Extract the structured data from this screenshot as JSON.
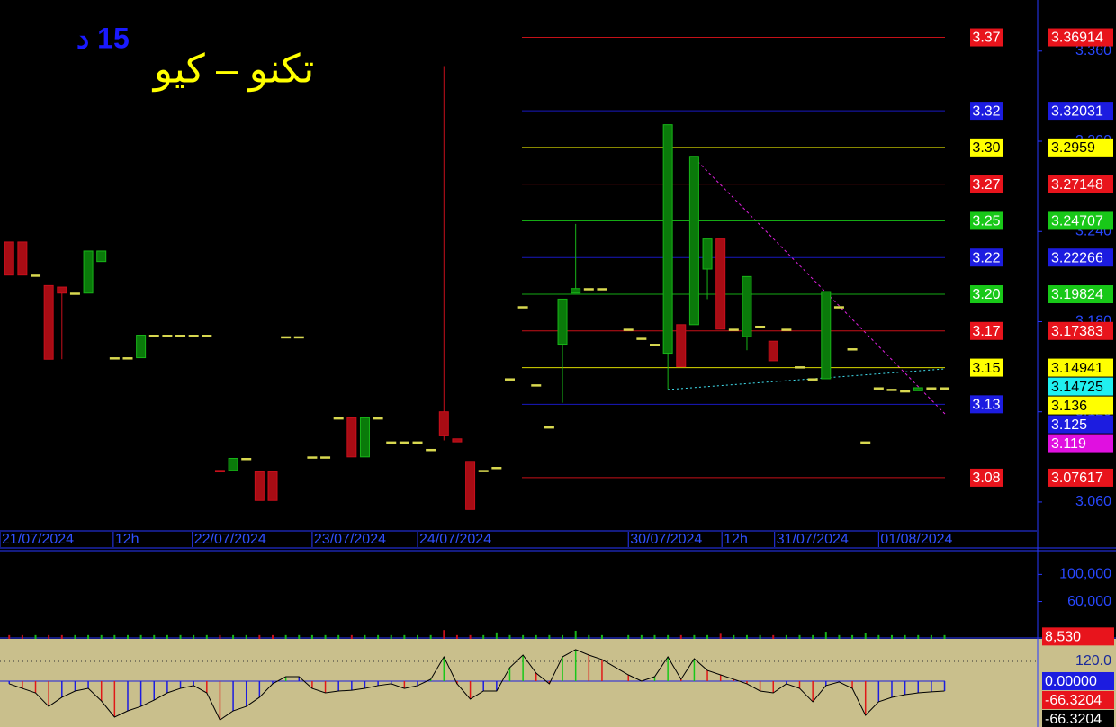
{
  "chart_data": [
    {
      "type": "candlestick",
      "title": "تكنو – كيو",
      "subtitle": "15 د",
      "x": [
        0,
        1,
        2,
        3,
        4,
        5,
        6,
        7,
        8,
        9,
        10,
        11,
        12,
        13,
        14,
        15,
        16,
        17,
        18,
        19,
        20,
        21,
        22,
        23,
        24,
        25,
        26,
        27,
        28,
        29,
        30,
        31,
        32,
        33,
        34,
        35,
        36,
        37,
        38,
        39,
        40,
        41,
        42,
        43,
        44,
        45,
        47,
        48,
        49,
        50,
        51,
        52,
        53,
        54,
        55,
        56,
        57,
        58,
        59,
        60,
        61,
        62,
        63,
        64,
        65,
        66,
        67,
        68,
        69,
        70,
        71
      ],
      "open": [
        3.233,
        3.233,
        3.211,
        3.204,
        3.203,
        3.199,
        3.199,
        3.22,
        3.156,
        3.156,
        3.156,
        3.171,
        3.171,
        3.171,
        3.171,
        3.171,
        3.081,
        3.081,
        3.089,
        3.08,
        3.08,
        3.17,
        3.17,
        3.09,
        3.09,
        3.116,
        3.116,
        3.09,
        3.116,
        3.1,
        3.1,
        3.1,
        3.095,
        3.12,
        3.102,
        3.087,
        3.081,
        3.083,
        3.142,
        3.19,
        3.138,
        3.11,
        3.165,
        3.199,
        3.202,
        3.202,
        3.175,
        3.169,
        3.165,
        3.159,
        3.178,
        3.178,
        3.215,
        3.235,
        3.175,
        3.17,
        3.177,
        3.167,
        3.175,
        3.15,
        3.142,
        3.142,
        3.19,
        3.162,
        3.1,
        3.136,
        3.135,
        3.134,
        3.134,
        3.136,
        3.136
      ],
      "high": [
        3.233,
        3.233,
        3.211,
        3.204,
        3.203,
        3.199,
        3.227,
        3.227,
        3.156,
        3.156,
        3.171,
        3.171,
        3.171,
        3.171,
        3.171,
        3.171,
        3.081,
        3.089,
        3.089,
        3.08,
        3.08,
        3.17,
        3.17,
        3.09,
        3.09,
        3.116,
        3.116,
        3.116,
        3.116,
        3.1,
        3.1,
        3.1,
        3.095,
        3.35,
        3.102,
        3.087,
        3.081,
        3.083,
        3.142,
        3.19,
        3.138,
        3.11,
        3.195,
        3.245,
        3.202,
        3.202,
        3.175,
        3.169,
        3.165,
        3.311,
        3.178,
        3.29,
        3.235,
        3.235,
        3.175,
        3.21,
        3.177,
        3.167,
        3.175,
        3.15,
        3.142,
        3.2,
        3.19,
        3.162,
        3.1,
        3.136,
        3.135,
        3.134,
        3.136,
        3.136,
        3.136
      ],
      "low": [
        3.211,
        3.211,
        3.211,
        3.155,
        3.155,
        3.199,
        3.199,
        3.22,
        3.156,
        3.156,
        3.156,
        3.171,
        3.171,
        3.171,
        3.171,
        3.171,
        3.08,
        3.081,
        3.089,
        3.061,
        3.061,
        3.17,
        3.17,
        3.09,
        3.09,
        3.116,
        3.09,
        3.09,
        3.116,
        3.1,
        3.1,
        3.1,
        3.095,
        3.101,
        3.1,
        3.055,
        3.081,
        3.083,
        3.142,
        3.19,
        3.138,
        3.11,
        3.126,
        3.199,
        3.202,
        3.202,
        3.175,
        3.169,
        3.165,
        3.135,
        3.15,
        3.178,
        3.195,
        3.175,
        3.175,
        3.161,
        3.177,
        3.154,
        3.175,
        3.15,
        3.142,
        3.142,
        3.19,
        3.162,
        3.1,
        3.136,
        3.135,
        3.134,
        3.134,
        3.136,
        3.136
      ],
      "close": [
        3.211,
        3.211,
        3.211,
        3.155,
        3.199,
        3.199,
        3.227,
        3.227,
        3.156,
        3.156,
        3.171,
        3.171,
        3.171,
        3.171,
        3.171,
        3.171,
        3.08,
        3.089,
        3.089,
        3.061,
        3.061,
        3.17,
        3.17,
        3.09,
        3.09,
        3.116,
        3.09,
        3.116,
        3.116,
        3.1,
        3.1,
        3.1,
        3.095,
        3.104,
        3.1,
        3.055,
        3.081,
        3.083,
        3.142,
        3.19,
        3.138,
        3.11,
        3.195,
        3.202,
        3.202,
        3.202,
        3.175,
        3.169,
        3.165,
        3.311,
        3.15,
        3.29,
        3.235,
        3.175,
        3.175,
        3.21,
        3.177,
        3.154,
        3.175,
        3.15,
        3.142,
        3.2,
        3.19,
        3.162,
        3.1,
        3.136,
        3.135,
        3.134,
        3.136,
        3.136,
        3.136
      ],
      "up_color": "#18b418",
      "down_color": "#c8101c",
      "flat_color": "#d8d850",
      "xlim": [
        -0.7,
        78
      ],
      "ylim": [
        3.042,
        3.394
      ],
      "xticks": [
        {
          "value": -0.7,
          "label": "21/07/2024"
        },
        {
          "value": 7.9,
          "label": "12h"
        },
        {
          "value": 13.9,
          "label": "22/07/2024"
        },
        {
          "value": 23,
          "label": "23/07/2024"
        },
        {
          "value": 31,
          "label": "24/07/2024"
        },
        {
          "value": 47,
          "label": "30/07/2024"
        },
        {
          "value": 54.1,
          "label": "12h"
        },
        {
          "value": 58.1,
          "label": "31/07/2024"
        },
        {
          "value": 66,
          "label": "01/08/2024"
        }
      ],
      "yticks": [
        {
          "value": 3.36,
          "label": "3.360"
        },
        {
          "value": 3.3,
          "label": "3.300"
        },
        {
          "value": 3.24,
          "label": "3.240"
        },
        {
          "value": 3.18,
          "label": "3.180"
        },
        {
          "value": 3.12,
          "label": "3.120"
        },
        {
          "value": 3.06,
          "label": "3.060"
        }
      ],
      "levels": {
        "values": [
          3.36914,
          3.32031,
          3.2959,
          3.27148,
          3.24707,
          3.22266,
          3.19824,
          3.17383,
          3.14941,
          3.125,
          3.07617
        ],
        "value_labels": [
          "3.37",
          "3.32",
          "3.30",
          "3.27",
          "3.25",
          "3.22",
          "3.20",
          "3.17",
          "3.15",
          "3.13",
          "3.08"
        ],
        "colors": [
          "#e8141c",
          "#1c1ce0",
          "#ffff00",
          "#e8141c",
          "#18c818",
          "#1c1ce0",
          "#18c818",
          "#e8141c",
          "#ffff00",
          "#1c1ce0",
          "#e8141c"
        ]
      },
      "markers": {
        "values": [
          3.14725,
          3.136,
          3.119
        ],
        "colors": [
          "#20f0f0",
          "#ffff00",
          "#e010e0"
        ]
      }
    },
    {
      "type": "volume",
      "x": [
        0,
        1,
        2,
        3,
        4,
        5,
        6,
        7,
        8,
        9,
        10,
        11,
        12,
        13,
        14,
        15,
        16,
        17,
        18,
        19,
        20,
        21,
        22,
        23,
        24,
        25,
        26,
        27,
        28,
        29,
        30,
        31,
        32,
        33,
        34,
        35,
        36,
        37,
        38,
        39,
        40,
        41,
        42,
        43,
        44,
        45,
        47,
        48,
        49,
        50,
        51,
        52,
        53,
        54,
        55,
        56,
        57,
        58,
        59,
        60,
        61,
        62,
        63,
        64,
        65,
        66,
        67,
        68,
        69,
        70,
        71
      ],
      "values": [
        10500,
        10500,
        10500,
        10500,
        10500,
        10500,
        10500,
        10500,
        10500,
        10500,
        10500,
        10500,
        10500,
        10500,
        10500,
        10500,
        10500,
        10500,
        10500,
        10500,
        10500,
        10500,
        10500,
        10500,
        10500,
        10500,
        10500,
        10500,
        10500,
        10500,
        10500,
        10500,
        10500,
        18000,
        10500,
        10500,
        10500,
        14500,
        10500,
        10500,
        10500,
        10500,
        10500,
        17000,
        10500,
        10500,
        10500,
        10500,
        10500,
        10500,
        10500,
        10500,
        10500,
        12500,
        10500,
        10500,
        10500,
        10500,
        10500,
        10500,
        10500,
        15500,
        10500,
        10500,
        13000,
        10500,
        10500,
        10500,
        10500,
        10500,
        10500
      ],
      "xlim": [
        -0.7,
        78
      ],
      "ylim": [
        5000,
        135000
      ],
      "yticks": [
        {
          "value": 100000,
          "label": "100,000"
        },
        {
          "value": 60000,
          "label": "60,000"
        }
      ],
      "markers": {
        "values": [
          8530
        ],
        "value_labels": [
          "8,530"
        ],
        "colors": [
          "#e8141c"
        ]
      }
    },
    {
      "type": "oscillator",
      "x": [
        0,
        1,
        2,
        3,
        4,
        5,
        6,
        7,
        8,
        9,
        10,
        11,
        12,
        13,
        14,
        15,
        16,
        17,
        18,
        19,
        20,
        21,
        22,
        23,
        24,
        25,
        26,
        27,
        28,
        29,
        30,
        31,
        32,
        33,
        34,
        35,
        36,
        37,
        38,
        39,
        40,
        41,
        42,
        43,
        44,
        45,
        47,
        48,
        49,
        50,
        51,
        52,
        53,
        54,
        55,
        56,
        57,
        58,
        59,
        60,
        61,
        62,
        63,
        64,
        65,
        66,
        67,
        68,
        69,
        70,
        71
      ],
      "values": [
        -16,
        -44,
        -71,
        -153,
        -98,
        -60,
        -44,
        -120,
        -218,
        -180,
        -153,
        -115,
        -71,
        -44,
        -27,
        -71,
        -235,
        -180,
        -153,
        -98,
        -16,
        27,
        27,
        -44,
        -71,
        -60,
        -55,
        -44,
        -27,
        -16,
        -44,
        -27,
        11,
        147,
        -16,
        -109,
        -60,
        -60,
        82,
        158,
        49,
        -16,
        147,
        191,
        158,
        131,
        38,
        0,
        27,
        147,
        11,
        136,
        65,
        38,
        11,
        -16,
        -60,
        -71,
        -16,
        -44,
        -125,
        -27,
        -5,
        -44,
        -207,
        -125,
        -98,
        -82,
        -71,
        -65,
        -60
      ],
      "xlim": [
        -0.7,
        78
      ],
      "ylim": [
        -278,
        256
      ],
      "yticks": [
        {
          "value": 120,
          "label": "120.0"
        }
      ],
      "markers": {
        "values": [
          0,
          -66.3204,
          -66.3204
        ],
        "value_labels": [
          "0.00000",
          "-66.3204",
          "-66.3204"
        ],
        "colors": [
          "#1c1ce0",
          "#e8141c",
          "#000000"
        ]
      }
    }
  ]
}
